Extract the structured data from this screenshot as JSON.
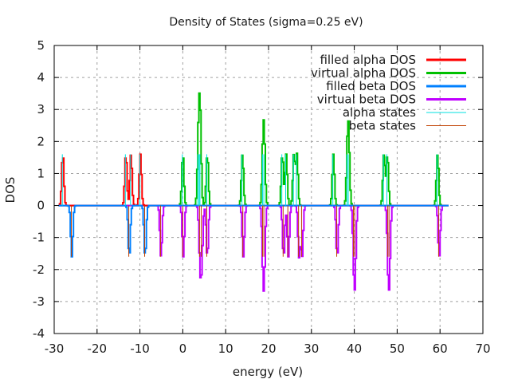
{
  "chart_data": {
    "type": "line",
    "title": "Density of States (sigma=0.25 eV)",
    "xlabel": "energy (eV)",
    "ylabel": "DOS",
    "xlim": [
      -30,
      70
    ],
    "ylim": [
      -4,
      5
    ],
    "xticks": [
      -30,
      -20,
      -10,
      0,
      10,
      20,
      30,
      40,
      50,
      60,
      70
    ],
    "yticks": [
      -4,
      -3,
      -2,
      -1,
      0,
      1,
      2,
      3,
      4,
      5
    ],
    "xtick_labels": [
      "-30",
      "-20",
      "-10",
      "0",
      "10",
      "20",
      "30",
      "40",
      "50",
      "60",
      "70"
    ],
    "ytick_labels": [
      "-4",
      "-3",
      "-2",
      "-1",
      "0",
      "1",
      "2",
      "3",
      "4",
      "5"
    ],
    "grid": true,
    "legend_position": "top-right",
    "sigma": 0.25,
    "energy_range": [
      -29,
      62
    ],
    "series": [
      {
        "name": "filled alpha DOS",
        "color": "#ff0000",
        "sign": 1,
        "states": [
          -28.1,
          -13.4,
          -12.2,
          -10.0
        ]
      },
      {
        "name": "virtual alpha DOS",
        "color": "#00c000",
        "sign": 1,
        "states": [
          -0.1,
          3.5,
          3.8,
          4.0,
          5.6,
          13.8,
          18.6,
          18.9,
          23.1,
          24.0,
          25.8,
          26.5,
          35.0,
          38.3,
          38.6,
          46.8,
          47.6,
          59.3
        ]
      },
      {
        "name": "filled beta DOS",
        "color": "#0080ff",
        "sign": -1,
        "states": [
          -26.0,
          -12.6,
          -8.9
        ]
      },
      {
        "name": "virtual beta DOS",
        "color": "#c000ff",
        "sign": -1,
        "states": [
          -5.2,
          0.0,
          3.9,
          4.3,
          5.6,
          14.0,
          18.6,
          18.9,
          23.4,
          24.5,
          27.0,
          27.7,
          35.9,
          39.8,
          40.1,
          47.8,
          48.1,
          59.7
        ]
      }
    ],
    "state_markers": [
      {
        "name": "alpha states",
        "color": "#00e0e0",
        "sign": 1,
        "height": 1.6,
        "energies": [
          -28.1,
          -13.4,
          -12.2,
          -10.0,
          -0.1,
          3.5,
          3.8,
          4.0,
          5.6,
          13.8,
          18.6,
          18.9,
          23.1,
          24.0,
          25.8,
          26.5,
          35.0,
          38.3,
          38.6,
          46.8,
          47.6,
          59.3
        ]
      },
      {
        "name": "beta states",
        "color": "#c04000",
        "sign": -1,
        "height": 1.6,
        "energies": [
          -26.0,
          -12.6,
          -8.9,
          -5.2,
          0.0,
          3.9,
          4.3,
          5.6,
          14.0,
          18.6,
          18.9,
          23.4,
          24.5,
          27.0,
          27.7,
          35.9,
          39.8,
          40.1,
          47.8,
          48.1,
          59.7
        ]
      }
    ]
  }
}
